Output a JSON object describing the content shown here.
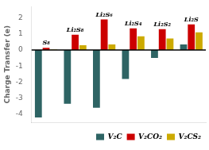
{
  "chart_data": {
    "type": "bar",
    "categories": [
      "S₈",
      "Li₂S₈",
      "Li₂S₆",
      "Li₂S₄",
      "Li₂S₂",
      "Li₂S"
    ],
    "series": [
      {
        "name": "V₂C",
        "color": "#2e6464",
        "values": [
          -4.2,
          -3.35,
          -3.6,
          -1.8,
          -0.5,
          0.35
        ]
      },
      {
        "name": "V₂CO₂",
        "color": "#cc0000",
        "values": [
          0.13,
          0.95,
          1.9,
          1.35,
          1.3,
          1.6
        ]
      },
      {
        "name": "V₂CS₂",
        "color": "#ccaa00",
        "values": [
          0.02,
          0.3,
          0.35,
          0.85,
          0.72,
          1.1
        ]
      }
    ],
    "ylabel": "Charge Transfer (e)",
    "ylim": [
      -4.5,
      2.7
    ],
    "yticks": [
      -4,
      -3,
      -2,
      -1,
      0,
      1,
      2
    ],
    "grid": false,
    "legend": "lower right",
    "tick_labels": "y"
  }
}
